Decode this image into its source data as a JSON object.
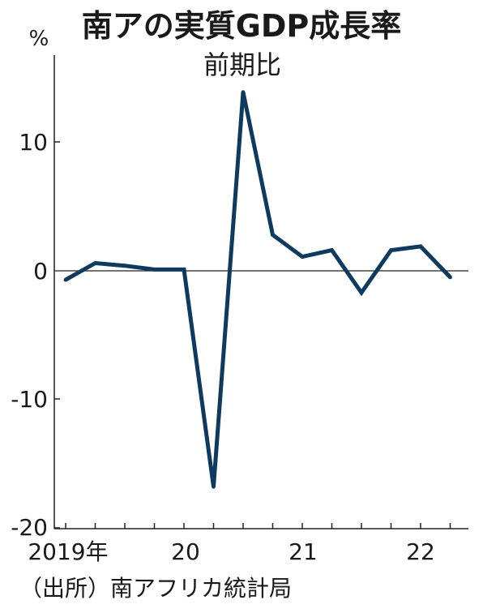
{
  "chart_data": {
    "type": "line",
    "title": "南アの実質GDP成長率",
    "subtitle": "前期比",
    "xlabel": "",
    "ylabel": "%",
    "x": [
      2019.0,
      2019.25,
      2019.5,
      2019.75,
      2020.0,
      2020.25,
      2020.5,
      2020.75,
      2021.0,
      2021.25,
      2021.5,
      2021.75,
      2022.0,
      2022.25
    ],
    "series": [
      {
        "values": [
          -0.7,
          0.6,
          0.4,
          0.1,
          0.1,
          -16.8,
          13.9,
          2.8,
          1.1,
          1.6,
          -1.7,
          1.6,
          1.9,
          -0.5
        ],
        "color": "#0e3a5f"
      }
    ],
    "xticks": [
      {
        "value": 2019,
        "label": "2019年"
      },
      {
        "value": 2020,
        "label": "20"
      },
      {
        "value": 2021,
        "label": "21"
      },
      {
        "value": 2022,
        "label": "22"
      }
    ],
    "yticks": [
      {
        "value": 10,
        "label": "10"
      },
      {
        "value": 0,
        "label": "0"
      },
      {
        "value": -10,
        "label": "-10"
      },
      {
        "value": -20,
        "label": "-20"
      }
    ],
    "xlim": [
      2018.9,
      2022.4
    ],
    "ylim": [
      -20,
      16.7
    ],
    "grid": false,
    "zero_line": true
  },
  "source": "（出所）南アフリカ統計局"
}
